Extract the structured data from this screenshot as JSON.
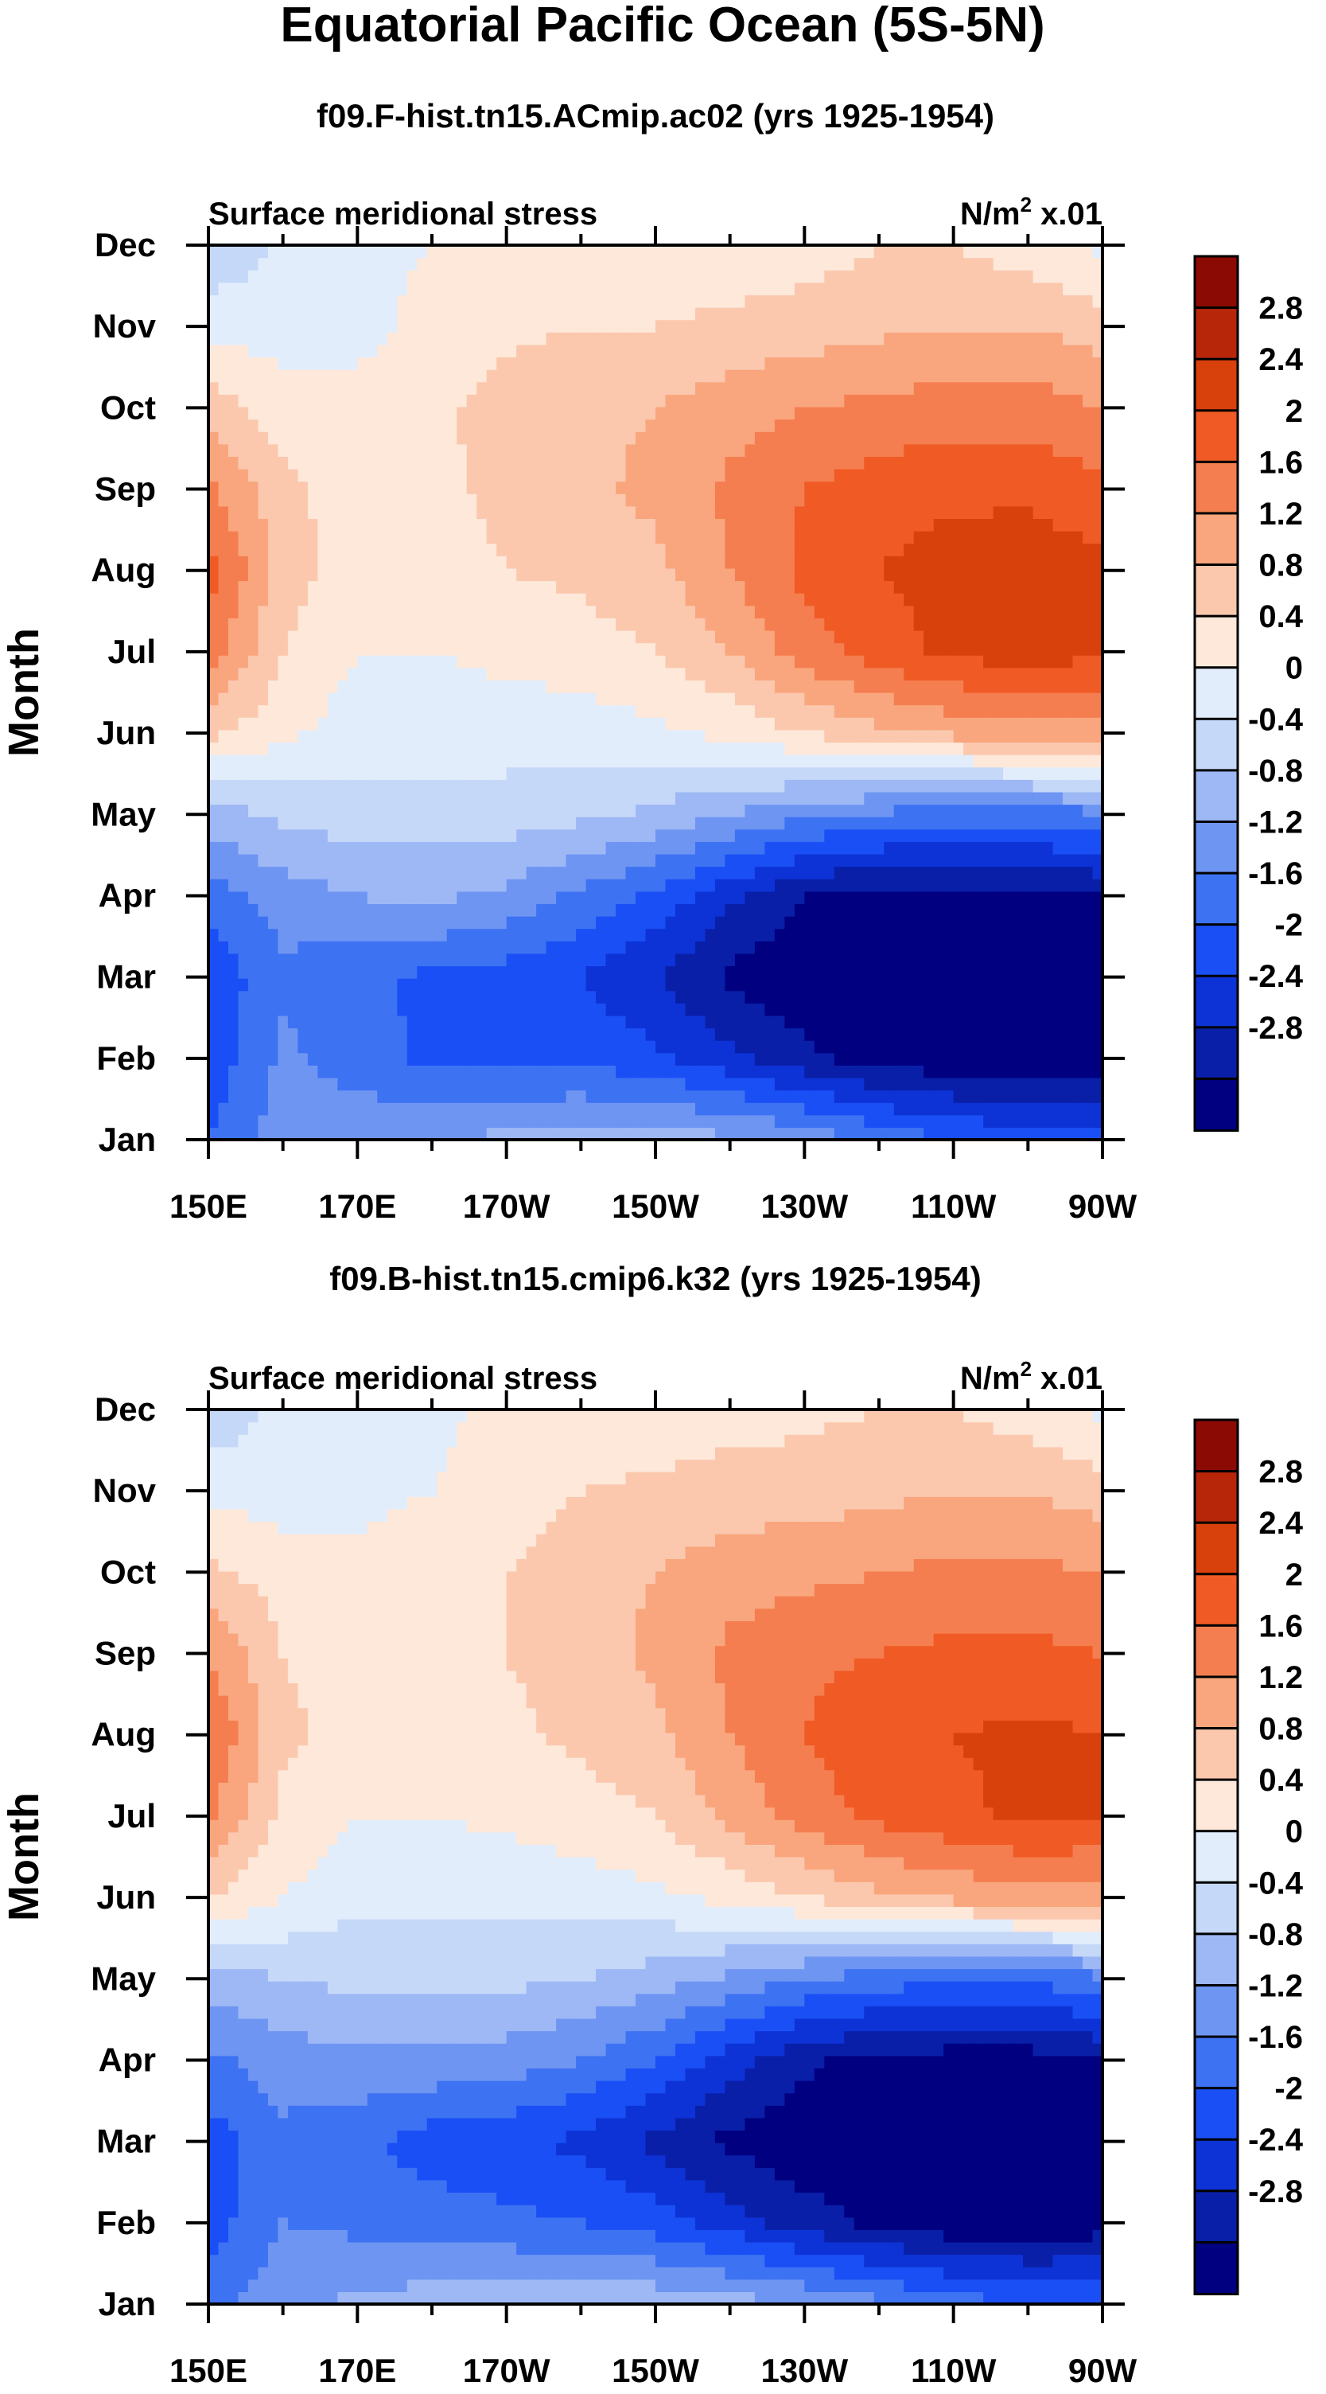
{
  "title": "Equatorial Pacific Ocean (5S-5N)",
  "colors": {
    "scale": [
      "#000080",
      "#0A1FA8",
      "#0D33D6",
      "#1A4FF5",
      "#3D72F2",
      "#6E95F2",
      "#9DB8F5",
      "#C6D8F8",
      "#E2EDFC",
      "#FDE8D9",
      "#FBC8AE",
      "#F9A67E",
      "#F57E50",
      "#F05A25",
      "#D8400C",
      "#B8260A",
      "#8C0A04"
    ]
  },
  "chart_data": [
    {
      "type": "heatmap",
      "title": "f09.F-hist.tn15.ACmip.ac02 (yrs 1925-1954)",
      "left_label": "Surface meridional stress",
      "units_label": "N/m",
      "units_sup": "2",
      "units_suffix": " x.01",
      "ylabel": "Month",
      "x": [
        150,
        160,
        170,
        180,
        190,
        200,
        210,
        220,
        230,
        240,
        250,
        260,
        270
      ],
      "x_ticks": [
        "150E",
        "170E",
        "170W",
        "150W",
        "130W",
        "110W",
        "90W"
      ],
      "y_ticks": [
        "Jan",
        "Feb",
        "Mar",
        "Apr",
        "May",
        "Jun",
        "Jul",
        "Aug",
        "Sep",
        "Oct",
        "Nov",
        "Dec"
      ],
      "levels": [
        -2.8,
        -2.4,
        -2,
        -1.6,
        -1.2,
        -0.8,
        -0.4,
        0,
        0.4,
        0.8,
        1.2,
        1.6,
        2,
        2.4,
        2.8
      ],
      "z": [
        [
          -1.6,
          -1.0,
          -0.9,
          -0.8,
          -0.7,
          -0.6,
          -0.6,
          -0.7,
          -0.9,
          -1.3,
          -1.6,
          -1.8,
          -1.9
        ],
        [
          -1.9,
          -1.1,
          -1.4,
          -1.7,
          -1.7,
          -1.7,
          -1.9,
          -2.3,
          -2.7,
          -3.0,
          -3.1,
          -3.1,
          -3.0
        ],
        [
          -1.9,
          -1.3,
          -1.5,
          -1.7,
          -1.8,
          -2.0,
          -2.4,
          -2.9,
          -3.1,
          -3.2,
          -3.2,
          -3.2,
          -3.0
        ],
        [
          -1.4,
          -1.0,
          -0.8,
          -0.7,
          -0.9,
          -1.3,
          -1.7,
          -2.3,
          -2.8,
          -3.0,
          -3.0,
          -3.0,
          -2.8
        ],
        [
          -0.6,
          -0.3,
          -0.2,
          -0.2,
          -0.2,
          -0.3,
          -0.5,
          -0.8,
          -1.1,
          -1.3,
          -1.4,
          -1.4,
          -1.3
        ],
        [
          0.9,
          0.5,
          0.2,
          0.2,
          0.2,
          0.2,
          0.3,
          0.5,
          0.8,
          1.1,
          1.3,
          1.4,
          1.4
        ],
        [
          1.8,
          0.8,
          0.4,
          0.4,
          0.5,
          0.6,
          0.8,
          1.2,
          1.8,
          2.2,
          2.5,
          2.6,
          2.5
        ],
        [
          2.2,
          1.0,
          0.6,
          0.6,
          0.8,
          0.9,
          1.1,
          1.6,
          2.1,
          2.4,
          2.6,
          2.7,
          2.5
        ],
        [
          1.7,
          0.9,
          0.6,
          0.7,
          0.9,
          1.1,
          1.3,
          1.7,
          2.0,
          2.2,
          2.3,
          2.3,
          2.1
        ],
        [
          1.0,
          0.6,
          0.5,
          0.7,
          1.0,
          1.1,
          1.2,
          1.4,
          1.6,
          1.7,
          1.8,
          1.8,
          1.6
        ],
        [
          0.3,
          0.2,
          0.3,
          0.5,
          0.7,
          0.8,
          0.8,
          0.9,
          1.0,
          1.1,
          1.2,
          1.2,
          1.0
        ],
        [
          -0.4,
          0.1,
          0.3,
          0.4,
          0.5,
          0.5,
          0.5,
          0.5,
          0.6,
          0.8,
          0.8,
          0.6,
          0.3
        ]
      ],
      "colorbar_labels": [
        "2.8",
        "2.4",
        "2",
        "1.6",
        "1.2",
        "0.8",
        "0.4",
        "0",
        "-0.4",
        "-0.8",
        "-1.2",
        "-1.6",
        "-2",
        "-2.4",
        "-2.8"
      ]
    },
    {
      "type": "heatmap",
      "title": "f09.B-hist.tn15.cmip6.k32 (yrs 1925-1954)",
      "left_label": "Surface meridional stress",
      "units_label": "N/m",
      "units_sup": "2",
      "units_suffix": " x.01",
      "ylabel": "Month",
      "x": [
        150,
        160,
        170,
        180,
        190,
        200,
        210,
        220,
        230,
        240,
        250,
        260,
        270
      ],
      "x_ticks": [
        "150E",
        "170E",
        "170W",
        "150W",
        "130W",
        "110W",
        "90W"
      ],
      "y_ticks": [
        "Jan",
        "Feb",
        "Mar",
        "Apr",
        "May",
        "Jun",
        "Jul",
        "Aug",
        "Sep",
        "Oct",
        "Nov",
        "Dec"
      ],
      "levels": [
        -2.8,
        -2.4,
        -2,
        -1.6,
        -1.2,
        -0.8,
        -0.4,
        0,
        0.4,
        0.8,
        1.2,
        1.6,
        2,
        2.4,
        2.8
      ],
      "z": [
        [
          -1.4,
          -0.9,
          -0.7,
          -0.6,
          -0.5,
          -0.5,
          -0.5,
          -0.6,
          -0.8,
          -1.1,
          -1.4,
          -1.6,
          -1.7
        ],
        [
          -1.8,
          -1.2,
          -1.3,
          -1.4,
          -1.5,
          -1.6,
          -1.8,
          -2.2,
          -2.6,
          -2.9,
          -3.1,
          -3.1,
          -3.0
        ],
        [
          -1.8,
          -1.3,
          -1.5,
          -1.8,
          -1.9,
          -2.1,
          -2.5,
          -2.9,
          -3.1,
          -3.2,
          -3.2,
          -3.2,
          -3.0
        ],
        [
          -1.3,
          -1.0,
          -0.9,
          -0.9,
          -1.0,
          -1.2,
          -1.6,
          -2.2,
          -2.7,
          -3.0,
          -3.0,
          -3.0,
          -2.8
        ],
        [
          -0.6,
          -0.4,
          -0.3,
          -0.3,
          -0.3,
          -0.4,
          -0.6,
          -0.9,
          -1.2,
          -1.4,
          -1.5,
          -1.5,
          -1.3
        ],
        [
          0.8,
          0.4,
          0.1,
          0.1,
          0.1,
          0.2,
          0.3,
          0.5,
          0.8,
          1.1,
          1.3,
          1.4,
          1.4
        ],
        [
          1.7,
          0.7,
          0.4,
          0.4,
          0.5,
          0.6,
          0.8,
          1.3,
          1.8,
          2.1,
          2.3,
          2.5,
          2.4
        ],
        [
          2.0,
          0.9,
          0.6,
          0.6,
          0.7,
          0.9,
          1.1,
          1.6,
          2.0,
          2.3,
          2.4,
          2.5,
          2.4
        ],
        [
          1.6,
          0.8,
          0.6,
          0.7,
          0.8,
          1.0,
          1.3,
          1.7,
          1.9,
          2.0,
          2.1,
          2.1,
          2.0
        ],
        [
          0.9,
          0.6,
          0.5,
          0.6,
          0.8,
          1.0,
          1.2,
          1.4,
          1.5,
          1.6,
          1.7,
          1.7,
          1.6
        ],
        [
          0.3,
          0.2,
          0.3,
          0.4,
          0.6,
          0.8,
          0.9,
          1.0,
          1.0,
          1.1,
          1.2,
          1.2,
          1.0
        ],
        [
          -0.3,
          0.1,
          0.2,
          0.3,
          0.5,
          0.5,
          0.5,
          0.6,
          0.7,
          0.8,
          0.8,
          0.6,
          0.3
        ]
      ],
      "colorbar_labels": [
        "2.8",
        "2.4",
        "2",
        "1.6",
        "1.2",
        "0.8",
        "0.4",
        "0",
        "-0.4",
        "-0.8",
        "-1.2",
        "-1.6",
        "-2",
        "-2.4",
        "-2.8"
      ]
    }
  ]
}
